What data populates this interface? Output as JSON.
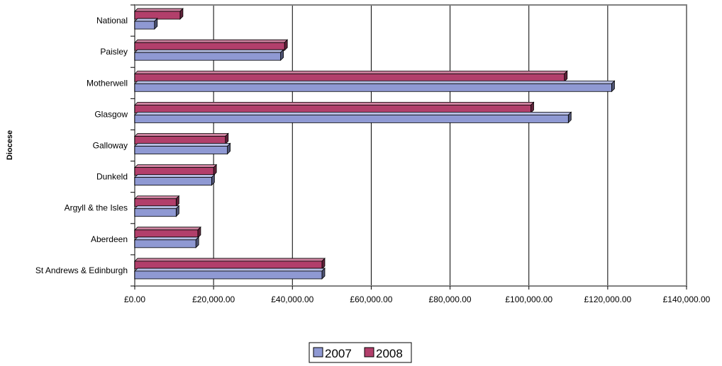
{
  "chart_data": {
    "type": "bar",
    "orientation": "horizontal",
    "style": "3d",
    "ylabel": "Diocese",
    "categories": [
      "National",
      "Paisley",
      "Motherwell",
      "Glasgow",
      "Galloway",
      "Dunkeld",
      "Argyll & the Isles",
      "Aberdeen",
      "St Andrews & Edinburgh"
    ],
    "series": [
      {
        "name": "2007",
        "color": "#8f99d3",
        "values": [
          5000,
          37000,
          121000,
          110000,
          23500,
          19500,
          10500,
          15500,
          47500
        ]
      },
      {
        "name": "2008",
        "color": "#b23f6b",
        "values": [
          11500,
          38000,
          109000,
          100500,
          23000,
          20000,
          10500,
          16000,
          47500
        ]
      }
    ],
    "xlim": [
      0,
      140000
    ],
    "x_ticks": [
      0,
      20000,
      40000,
      60000,
      80000,
      100000,
      120000,
      140000
    ],
    "x_tick_labels": [
      "£0.00",
      "£20,000.00",
      "£40,000.00",
      "£60,000.00",
      "£80,000.00",
      "£100,000.00",
      "£120,000.00",
      "£140,000.00"
    ],
    "grid": "vertical",
    "legend": "bottom-center"
  }
}
